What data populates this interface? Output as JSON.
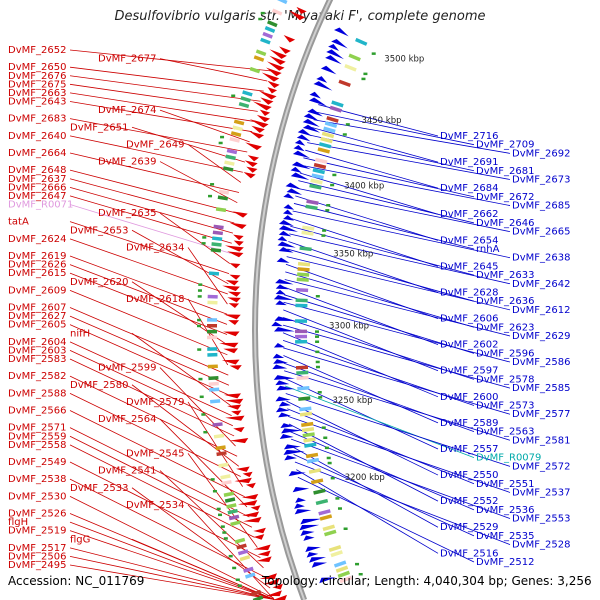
{
  "title": "Desulfovibrio vulgaris str. 'Miyazaki F', complete genome",
  "footer": {
    "accession": "Accession: NC_011769",
    "summary": "Topology: circular; Length: 4,040,304 bp; Genes: 3,256"
  },
  "colors": {
    "forward": "#e00000",
    "reverse": "#0000dd",
    "rna": "#00aaaa",
    "pseudo": "#e09adf"
  },
  "icons": [
    "forward-arrow-icon",
    "reverse-arrow-icon"
  ],
  "left_labels": [
    {
      "text": "DvMF_2652",
      "color": "red"
    },
    {
      "text": "DvMF_2677",
      "color": "red"
    },
    {
      "text": "DvMF_2650",
      "color": "red"
    },
    {
      "text": "DvMF_2676",
      "color": "red"
    },
    {
      "text": "DvMF_2675",
      "color": "red"
    },
    {
      "text": "DvMF_2663",
      "color": "red"
    },
    {
      "text": "DvMF_2643",
      "color": "red"
    },
    {
      "text": "DvMF_2674",
      "color": "red"
    },
    {
      "text": "DvMF_2683",
      "color": "red"
    },
    {
      "text": "DvMF_2651",
      "color": "red"
    },
    {
      "text": "DvMF_2640",
      "color": "red"
    },
    {
      "text": "DvMF_2649",
      "color": "red"
    },
    {
      "text": "DvMF_2664",
      "color": "red"
    },
    {
      "text": "DvMF_2639",
      "color": "red"
    },
    {
      "text": "DvMF_2648",
      "color": "red"
    },
    {
      "text": "DvMF_2637",
      "color": "red"
    },
    {
      "text": "DvMF_2666",
      "color": "red"
    },
    {
      "text": "DvMF_2647",
      "color": "red"
    },
    {
      "text": "DvMF_R0071",
      "color": "pink"
    },
    {
      "text": "DvMF_2635",
      "color": "red"
    },
    {
      "text": "tatA",
      "color": "red"
    },
    {
      "text": "DvMF_2653",
      "color": "red"
    },
    {
      "text": "DvMF_2624",
      "color": "red"
    },
    {
      "text": "DvMF_2634",
      "color": "red"
    },
    {
      "text": "DvMF_2619",
      "color": "red"
    },
    {
      "text": "DvMF_2626",
      "color": "red"
    },
    {
      "text": "DvMF_2615",
      "color": "red"
    },
    {
      "text": "DvMF_2620",
      "color": "red"
    },
    {
      "text": "DvMF_2609",
      "color": "red"
    },
    {
      "text": "DvMF_2618",
      "color": "red"
    },
    {
      "text": "DvMF_2607",
      "color": "red"
    },
    {
      "text": "DvMF_2627",
      "color": "red"
    },
    {
      "text": "DvMF_2605",
      "color": "red"
    },
    {
      "text": "nifH",
      "color": "red"
    },
    {
      "text": "DvMF_2604",
      "color": "red"
    },
    {
      "text": "DvMF_2603",
      "color": "red"
    },
    {
      "text": "DvMF_2583",
      "color": "red"
    },
    {
      "text": "DvMF_2599",
      "color": "red"
    },
    {
      "text": "DvMF_2582",
      "color": "red"
    },
    {
      "text": "DvMF_2580",
      "color": "red"
    },
    {
      "text": "DvMF_2588",
      "color": "red"
    },
    {
      "text": "DvMF_2579",
      "color": "red"
    },
    {
      "text": "DvMF_2566",
      "color": "red"
    },
    {
      "text": "DvMF_2564",
      "color": "red"
    },
    {
      "text": "DvMF_2571",
      "color": "red"
    },
    {
      "text": "DvMF_2559",
      "color": "red"
    },
    {
      "text": "DvMF_2558",
      "color": "red"
    },
    {
      "text": "DvMF_2545",
      "color": "red"
    },
    {
      "text": "DvMF_2549",
      "color": "red"
    },
    {
      "text": "DvMF_2541",
      "color": "red"
    },
    {
      "text": "DvMF_2538",
      "color": "red"
    },
    {
      "text": "DvMF_2533",
      "color": "red"
    },
    {
      "text": "DvMF_2530",
      "color": "red"
    },
    {
      "text": "DvMF_2534",
      "color": "red"
    },
    {
      "text": "DvMF_2526",
      "color": "red"
    },
    {
      "text": "flgH",
      "color": "red"
    },
    {
      "text": "DvMF_2519",
      "color": "red"
    },
    {
      "text": "flgG",
      "color": "red"
    },
    {
      "text": "DvMF_2517",
      "color": "red"
    },
    {
      "text": "DvMF_2506",
      "color": "red"
    },
    {
      "text": "DvMF_2495",
      "color": "red"
    }
  ],
  "right_labels": [
    {
      "text": "DvMF_2716",
      "color": "blue"
    },
    {
      "text": "DvMF_2709",
      "color": "blue"
    },
    {
      "text": "DvMF_2692",
      "color": "blue"
    },
    {
      "text": "DvMF_2691",
      "color": "blue"
    },
    {
      "text": "DvMF_2681",
      "color": "blue"
    },
    {
      "text": "DvMF_2673",
      "color": "blue"
    },
    {
      "text": "DvMF_2684",
      "color": "blue"
    },
    {
      "text": "DvMF_2672",
      "color": "blue"
    },
    {
      "text": "DvMF_2685",
      "color": "blue"
    },
    {
      "text": "DvMF_2662",
      "color": "blue"
    },
    {
      "text": "DvMF_2646",
      "color": "blue"
    },
    {
      "text": "DvMF_2665",
      "color": "blue"
    },
    {
      "text": "DvMF_2654",
      "color": "blue"
    },
    {
      "text": "rnhA",
      "color": "blue"
    },
    {
      "text": "DvMF_2638",
      "color": "blue"
    },
    {
      "text": "DvMF_2645",
      "color": "blue"
    },
    {
      "text": "DvMF_2633",
      "color": "blue"
    },
    {
      "text": "DvMF_2642",
      "color": "blue"
    },
    {
      "text": "DvMF_2628",
      "color": "blue"
    },
    {
      "text": "DvMF_2636",
      "color": "blue"
    },
    {
      "text": "DvMF_2612",
      "color": "blue"
    },
    {
      "text": "DvMF_2606",
      "color": "blue"
    },
    {
      "text": "DvMF_2623",
      "color": "blue"
    },
    {
      "text": "DvMF_2629",
      "color": "blue"
    },
    {
      "text": "DvMF_2602",
      "color": "blue"
    },
    {
      "text": "DvMF_2596",
      "color": "blue"
    },
    {
      "text": "DvMF_2586",
      "color": "blue"
    },
    {
      "text": "DvMF_2597",
      "color": "blue"
    },
    {
      "text": "DvMF_2578",
      "color": "blue"
    },
    {
      "text": "DvMF_2585",
      "color": "blue"
    },
    {
      "text": "DvMF_2600",
      "color": "blue"
    },
    {
      "text": "DvMF_2573",
      "color": "blue"
    },
    {
      "text": "DvMF_2577",
      "color": "blue"
    },
    {
      "text": "DvMF_2589",
      "color": "blue"
    },
    {
      "text": "DvMF_2563",
      "color": "blue"
    },
    {
      "text": "DvMF_2581",
      "color": "blue"
    },
    {
      "text": "DvMF_2557",
      "color": "blue"
    },
    {
      "text": "DvMF_R0079",
      "color": "cyan"
    },
    {
      "text": "DvMF_2572",
      "color": "blue"
    },
    {
      "text": "DvMF_2550",
      "color": "blue"
    },
    {
      "text": "DvMF_2551",
      "color": "blue"
    },
    {
      "text": "DvMF_2537",
      "color": "blue"
    },
    {
      "text": "DvMF_2552",
      "color": "blue"
    },
    {
      "text": "DvMF_2536",
      "color": "blue"
    },
    {
      "text": "DvMF_2553",
      "color": "blue"
    },
    {
      "text": "DvMF_2529",
      "color": "blue"
    },
    {
      "text": "DvMF_2535",
      "color": "blue"
    },
    {
      "text": "DvMF_2528",
      "color": "blue"
    },
    {
      "text": "DvMF_2516",
      "color": "blue"
    },
    {
      "text": "DvMF_2512",
      "color": "blue"
    }
  ],
  "kbp_labels": [
    "3500 kbp",
    "3450 kbp",
    "3400 kbp",
    "3350 kbp",
    "3300 kbp",
    "3250 kbp",
    "3200 kbp"
  ]
}
